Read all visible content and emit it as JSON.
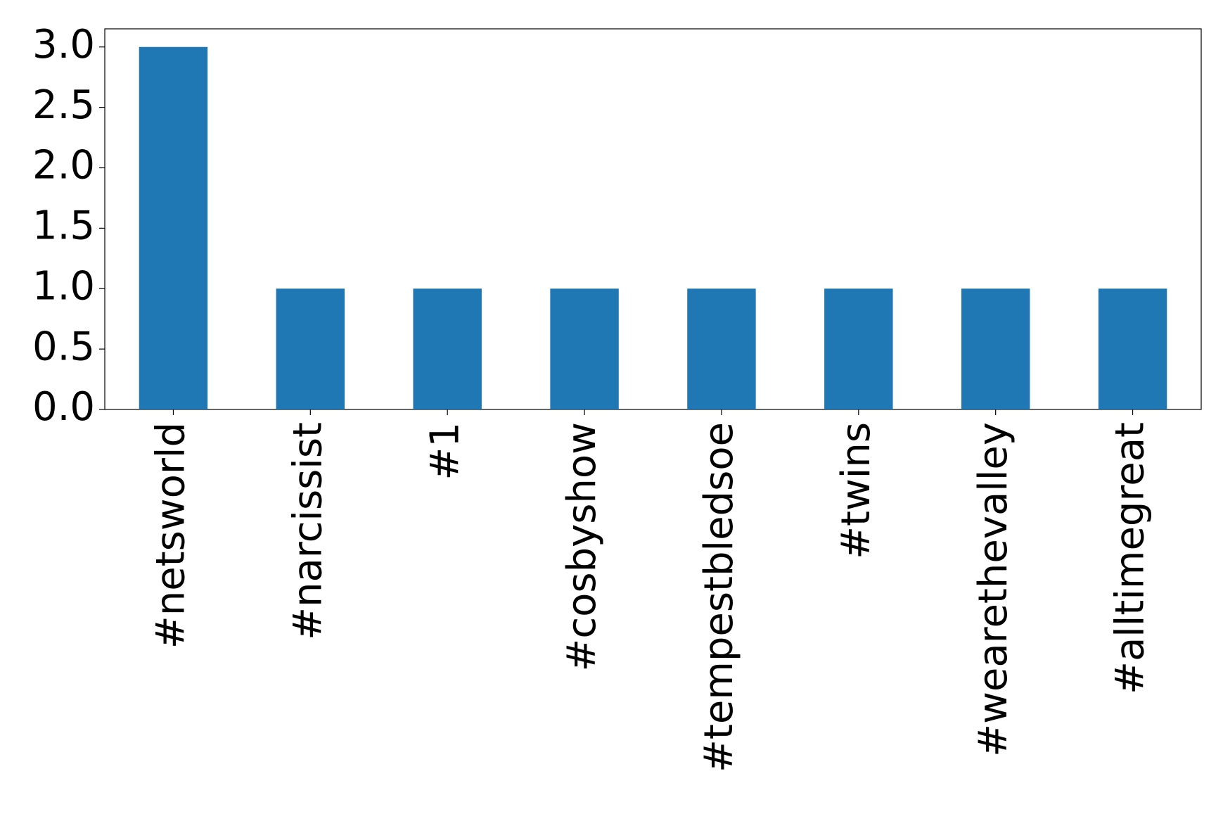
{
  "chart_data": {
    "type": "bar",
    "categories": [
      "#netsworld",
      "#narcissist",
      "#1",
      "#cosbyshow",
      "#tempestbledsoe",
      "#twins",
      "#wearethevalley",
      "#alltimegreat"
    ],
    "values": [
      3,
      1,
      1,
      1,
      1,
      1,
      1,
      1
    ],
    "color": "#1f77b4",
    "ylim": [
      0,
      3.15
    ],
    "yticks": [
      {
        "value": 0,
        "label": "0.0"
      },
      {
        "value": 0.5,
        "label": "0.5"
      },
      {
        "value": 1,
        "label": "1.0"
      },
      {
        "value": 1.5,
        "label": "1.5"
      },
      {
        "value": 2,
        "label": "2.0"
      },
      {
        "value": 2.5,
        "label": "2.5"
      },
      {
        "value": 3,
        "label": "3.0"
      }
    ],
    "grid": false
  }
}
